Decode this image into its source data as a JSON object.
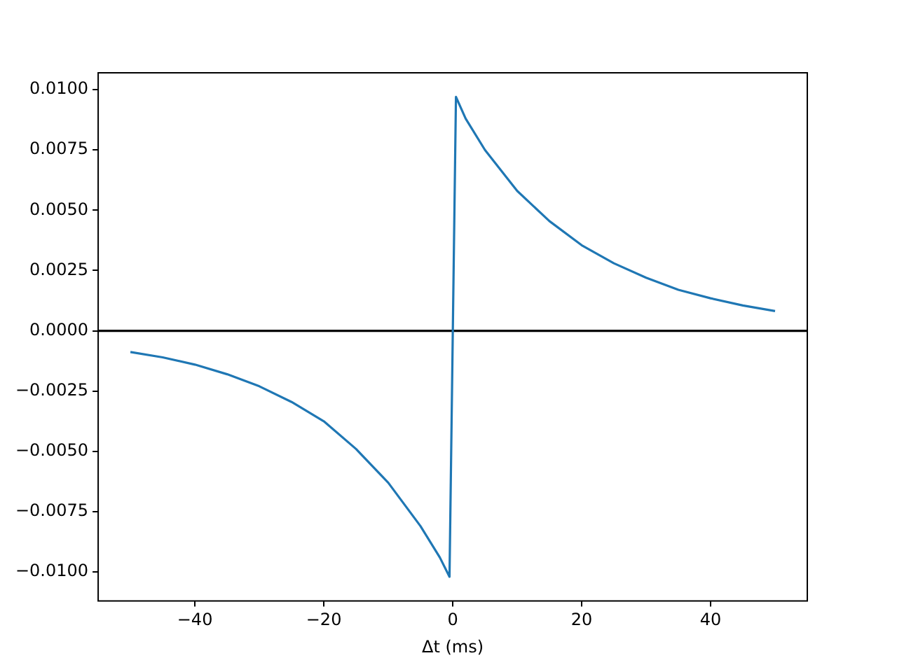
{
  "chart_data": {
    "type": "line",
    "xlabel": "Δt (ms)",
    "x": [
      -50,
      -45,
      -40,
      -35,
      -30,
      -25,
      -20,
      -15,
      -10,
      -5,
      -2,
      -0.5,
      0.5,
      2,
      5,
      10,
      15,
      20,
      25,
      30,
      35,
      40,
      45,
      50
    ],
    "series": [
      {
        "color": "#1f77b4",
        "values": [
          -0.00088,
          -0.0011,
          -0.0014,
          -0.0018,
          -0.0023,
          -0.00295,
          -0.00375,
          -0.0049,
          -0.0063,
          -0.0081,
          -0.0094,
          -0.0102,
          0.0097,
          0.0088,
          0.0075,
          0.0058,
          0.00455,
          0.00355,
          0.0028,
          0.0022,
          0.0017,
          0.00135,
          0.00105,
          0.00082
        ]
      }
    ],
    "xlim": [
      -55,
      55
    ],
    "xticks": [
      {
        "value": -40,
        "label": "−40"
      },
      {
        "value": -20,
        "label": "−20"
      },
      0,
      20,
      40
    ],
    "ylim": [
      -0.0112,
      0.0107
    ],
    "yticks": [
      {
        "value": -0.01,
        "label": "−0.0100"
      },
      {
        "value": -0.0075,
        "label": "−0.0075"
      },
      {
        "value": -0.005,
        "label": "−0.0050"
      },
      {
        "value": -0.0025,
        "label": "−0.0025"
      },
      {
        "value": 0,
        "label": "0.0000"
      },
      {
        "value": 0.0025,
        "label": "0.0025"
      },
      {
        "value": 0.005,
        "label": "0.0050"
      },
      {
        "value": 0.0075,
        "label": "0.0075"
      },
      {
        "value": 0.01,
        "label": "0.0100"
      }
    ],
    "ref_lines": [
      {
        "axis": "y",
        "value": 0,
        "color": "#000000"
      }
    ],
    "grid": false,
    "legend": false,
    "marker": "none",
    "line_style": "solid"
  }
}
